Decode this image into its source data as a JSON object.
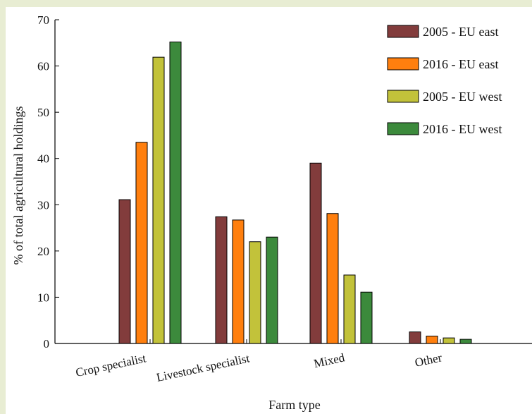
{
  "chart_data": {
    "type": "bar",
    "xlabel": "Farm type",
    "ylabel": "% of total agricultural holdings",
    "ylim": [
      0,
      70
    ],
    "yticks": [
      0,
      10,
      20,
      30,
      40,
      50,
      60,
      70
    ],
    "categories": [
      "Crop specialist",
      "Livestock specialist",
      "Mixed",
      "Other"
    ],
    "series": [
      {
        "name": "2005 - EU east",
        "color": "#823c3c",
        "values": [
          31.1,
          27.4,
          39.0,
          2.5
        ]
      },
      {
        "name": "2016 - EU east",
        "color": "#ff7f0e",
        "values": [
          43.5,
          26.7,
          28.1,
          1.6
        ]
      },
      {
        "name": "2005 - EU west",
        "color": "#c2c23a",
        "values": [
          61.9,
          22.0,
          14.8,
          1.2
        ]
      },
      {
        "name": "2016 - EU west",
        "color": "#3c8a3c",
        "values": [
          65.2,
          23.0,
          11.1,
          0.9
        ]
      }
    ],
    "legend_position": "top-right",
    "grid": false
  }
}
